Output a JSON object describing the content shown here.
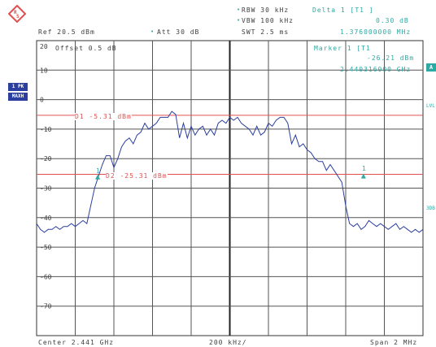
{
  "header": {
    "rbw_label": "RBW 30 kHz",
    "vbw_label": "VBW 100 kHz",
    "swt_label": "SWT 2.5 ms",
    "ref_label": "Ref 20.5 dBm",
    "att_label": "Att 30 dB",
    "delta_title": "Delta 1 [T1 ]",
    "delta_value": "0.30 dB",
    "delta_freq": "1.376000000 MHz"
  },
  "marker": {
    "title": "Marker 1 [T1",
    "value": "-26.21 dBm",
    "freq": "2.440316000 GHz",
    "label": "1"
  },
  "graticule": {
    "offset_label": "Offset 0.5 dB",
    "d1_label": "D1 -5.31 dBm",
    "d2_label": "D2 -25.31 dBm",
    "center_label": "Center 2.441 GHz",
    "span_div_label": "200 kHz/",
    "span_label": "Span 2 MHz"
  },
  "side": {
    "pk_label": "1 PK",
    "maxh_label": "MAXH",
    "right_a": "A",
    "right_lvl": "LVL",
    "right_3db": "3DB"
  },
  "colors": {
    "trace": "#2a3f9f",
    "display_line": "#e05050",
    "marker": "#2fa9a3",
    "grid": "#555555"
  },
  "chart_data": {
    "type": "line",
    "xlabel": "",
    "ylabel": "",
    "x_unit": "MHz",
    "xlim": [
      2440.0,
      2442.0
    ],
    "ylim": [
      -80,
      20
    ],
    "y_ticks": [
      "20",
      "10",
      "0",
      "-10",
      "-20",
      "-30",
      "-40",
      "-50",
      "-60",
      "-70"
    ],
    "display_lines": [
      {
        "name": "D1",
        "value": -5.31
      },
      {
        "name": "D2",
        "value": -25.31
      }
    ],
    "markers": [
      {
        "name": "1",
        "x": 2440.316,
        "y": -26.21
      },
      {
        "name": "1",
        "x": 2441.692,
        "y": -25.91
      }
    ],
    "series": [
      {
        "values": [
          [
            2440.0,
            -42
          ],
          [
            2440.02,
            -44
          ],
          [
            2440.04,
            -45
          ],
          [
            2440.06,
            -44
          ],
          [
            2440.08,
            -44
          ],
          [
            2440.1,
            -43
          ],
          [
            2440.12,
            -44
          ],
          [
            2440.14,
            -43
          ],
          [
            2440.16,
            -43
          ],
          [
            2440.18,
            -42
          ],
          [
            2440.2,
            -43
          ],
          [
            2440.22,
            -42
          ],
          [
            2440.24,
            -41
          ],
          [
            2440.26,
            -42
          ],
          [
            2440.28,
            -36
          ],
          [
            2440.3,
            -30
          ],
          [
            2440.32,
            -26
          ],
          [
            2440.34,
            -22
          ],
          [
            2440.36,
            -19
          ],
          [
            2440.38,
            -19
          ],
          [
            2440.4,
            -23
          ],
          [
            2440.42,
            -20
          ],
          [
            2440.44,
            -16
          ],
          [
            2440.46,
            -14
          ],
          [
            2440.48,
            -13
          ],
          [
            2440.5,
            -15
          ],
          [
            2440.52,
            -12
          ],
          [
            2440.54,
            -11
          ],
          [
            2440.56,
            -8
          ],
          [
            2440.58,
            -10
          ],
          [
            2440.6,
            -9
          ],
          [
            2440.62,
            -8
          ],
          [
            2440.64,
            -6
          ],
          [
            2440.66,
            -6
          ],
          [
            2440.68,
            -6
          ],
          [
            2440.7,
            -4
          ],
          [
            2440.72,
            -5
          ],
          [
            2440.74,
            -13
          ],
          [
            2440.76,
            -8
          ],
          [
            2440.78,
            -13
          ],
          [
            2440.8,
            -9
          ],
          [
            2440.82,
            -12
          ],
          [
            2440.84,
            -10
          ],
          [
            2440.86,
            -9
          ],
          [
            2440.88,
            -12
          ],
          [
            2440.9,
            -10
          ],
          [
            2440.92,
            -12
          ],
          [
            2440.94,
            -8
          ],
          [
            2440.96,
            -7
          ],
          [
            2440.98,
            -8
          ],
          [
            2441.0,
            -6
          ],
          [
            2441.02,
            -7
          ],
          [
            2441.04,
            -6
          ],
          [
            2441.06,
            -8
          ],
          [
            2441.08,
            -9
          ],
          [
            2441.1,
            -10
          ],
          [
            2441.12,
            -12
          ],
          [
            2441.14,
            -9
          ],
          [
            2441.16,
            -12
          ],
          [
            2441.18,
            -11
          ],
          [
            2441.2,
            -8
          ],
          [
            2441.22,
            -9
          ],
          [
            2441.24,
            -7
          ],
          [
            2441.26,
            -6
          ],
          [
            2441.28,
            -6
          ],
          [
            2441.3,
            -8
          ],
          [
            2441.32,
            -15
          ],
          [
            2441.34,
            -12
          ],
          [
            2441.36,
            -16
          ],
          [
            2441.38,
            -15
          ],
          [
            2441.4,
            -17
          ],
          [
            2441.42,
            -18
          ],
          [
            2441.44,
            -20
          ],
          [
            2441.46,
            -21
          ],
          [
            2441.48,
            -21
          ],
          [
            2441.5,
            -24
          ],
          [
            2441.52,
            -22
          ],
          [
            2441.54,
            -24
          ],
          [
            2441.56,
            -26
          ],
          [
            2441.58,
            -28
          ],
          [
            2441.6,
            -36
          ],
          [
            2441.62,
            -42
          ],
          [
            2441.64,
            -43
          ],
          [
            2441.66,
            -42
          ],
          [
            2441.68,
            -44
          ],
          [
            2441.7,
            -43
          ],
          [
            2441.72,
            -41
          ],
          [
            2441.74,
            -42
          ],
          [
            2441.76,
            -43
          ],
          [
            2441.78,
            -42
          ],
          [
            2441.8,
            -43
          ],
          [
            2441.82,
            -44
          ],
          [
            2441.84,
            -43
          ],
          [
            2441.86,
            -42
          ],
          [
            2441.88,
            -44
          ],
          [
            2441.9,
            -43
          ],
          [
            2441.92,
            -44
          ],
          [
            2441.94,
            -45
          ],
          [
            2441.96,
            -44
          ],
          [
            2441.98,
            -45
          ],
          [
            2442.0,
            -44
          ]
        ]
      }
    ]
  }
}
